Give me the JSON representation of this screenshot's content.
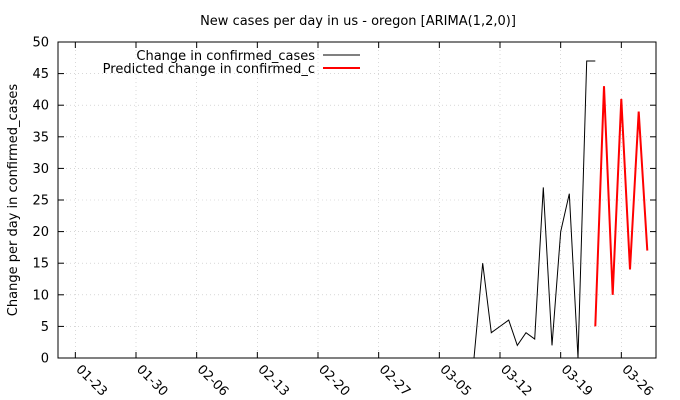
{
  "chart_data": {
    "type": "line",
    "title": "New cases per day in us - oregon [ARIMA(1,2,0)]",
    "xlabel": "",
    "ylabel": "Change per day in confirmed_cases",
    "ylim": [
      0,
      50
    ],
    "yticks": [
      "0",
      "5",
      "10",
      "15",
      "20",
      "25",
      "30",
      "35",
      "40",
      "45",
      "50"
    ],
    "xlim": [
      "2020-01-21",
      "2020-03-30"
    ],
    "xticks": [
      {
        "date": "2020-01-23",
        "label": "01-23"
      },
      {
        "date": "2020-01-30",
        "label": "01-30"
      },
      {
        "date": "2020-02-06",
        "label": "02-06"
      },
      {
        "date": "2020-02-13",
        "label": "02-13"
      },
      {
        "date": "2020-02-20",
        "label": "02-20"
      },
      {
        "date": "2020-02-27",
        "label": "02-27"
      },
      {
        "date": "2020-03-05",
        "label": "03-05"
      },
      {
        "date": "2020-03-12",
        "label": "03-12"
      },
      {
        "date": "2020-03-19",
        "label": "03-19"
      },
      {
        "date": "2020-03-26",
        "label": "03-26"
      }
    ],
    "grid": true,
    "legend_position": "top-left",
    "series": [
      {
        "name": "Change in confirmed_cases",
        "color": "#000000",
        "x": [
          "2020-03-09",
          "2020-03-10",
          "2020-03-11",
          "2020-03-12",
          "2020-03-13",
          "2020-03-14",
          "2020-03-15",
          "2020-03-16",
          "2020-03-17",
          "2020-03-18",
          "2020-03-19",
          "2020-03-20",
          "2020-03-21",
          "2020-03-22",
          "2020-03-23"
        ],
        "y": [
          0,
          15,
          4,
          5,
          6,
          2,
          4,
          3,
          27,
          2,
          20,
          26,
          0,
          47,
          47
        ]
      },
      {
        "name": "Predicted change in confirmed_c",
        "color": "#ff0000",
        "x": [
          "2020-03-23",
          "2020-03-24",
          "2020-03-25",
          "2020-03-26",
          "2020-03-27",
          "2020-03-28",
          "2020-03-29"
        ],
        "y": [
          5,
          43,
          10,
          41,
          14,
          39,
          17
        ]
      }
    ]
  }
}
